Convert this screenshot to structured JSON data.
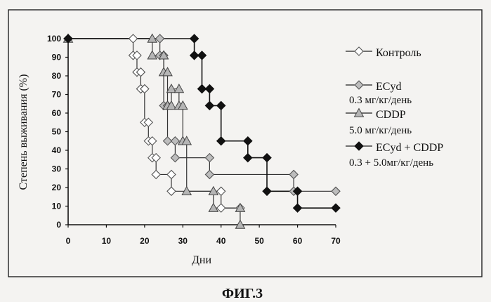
{
  "chart_data": {
    "type": "line",
    "step": true,
    "xlabel": "Дни",
    "ylabel": "Степень выживания (%)",
    "xlim": [
      0,
      70
    ],
    "ylim": [
      0,
      100
    ],
    "x_ticks": [
      0,
      10,
      20,
      30,
      40,
      50,
      60,
      70
    ],
    "y_ticks": [
      0,
      10,
      20,
      30,
      40,
      50,
      60,
      70,
      80,
      90,
      100
    ],
    "grid": false,
    "legend_position": "right",
    "caption": "ФИГ.3",
    "series": [
      {
        "name": "Контроль",
        "sublabel": "",
        "marker": "diamond-open",
        "color": "#ffffff",
        "points": [
          [
            0,
            100
          ],
          [
            17,
            100
          ],
          [
            17,
            91
          ],
          [
            18,
            91
          ],
          [
            18,
            82
          ],
          [
            19,
            82
          ],
          [
            19,
            73
          ],
          [
            20,
            73
          ],
          [
            20,
            55
          ],
          [
            21,
            55
          ],
          [
            21,
            45
          ],
          [
            22,
            45
          ],
          [
            22,
            36
          ],
          [
            23,
            36
          ],
          [
            23,
            27
          ],
          [
            27,
            27
          ],
          [
            27,
            18
          ],
          [
            40,
            18
          ],
          [
            40,
            9
          ],
          [
            45,
            9
          ]
        ]
      },
      {
        "name": "ECyd",
        "sublabel": "0.3 мг/кг/день",
        "marker": "diamond-gray",
        "color": "#bdbdbd",
        "points": [
          [
            0,
            100
          ],
          [
            24,
            100
          ],
          [
            24,
            91
          ],
          [
            25,
            91
          ],
          [
            25,
            64
          ],
          [
            26,
            64
          ],
          [
            26,
            45
          ],
          [
            28,
            45
          ],
          [
            28,
            36
          ],
          [
            37,
            36
          ],
          [
            37,
            27
          ],
          [
            59,
            27
          ],
          [
            59,
            18
          ],
          [
            70,
            18
          ]
        ]
      },
      {
        "name": "CDDP",
        "sublabel": "5.0 мг/кг/день",
        "marker": "triangle-gray",
        "color": "#b5b5b5",
        "points": [
          [
            0,
            100
          ],
          [
            22,
            100
          ],
          [
            22,
            91
          ],
          [
            25,
            91
          ],
          [
            25,
            82
          ],
          [
            26,
            82
          ],
          [
            26,
            64
          ],
          [
            27,
            64
          ],
          [
            27,
            73
          ],
          [
            29,
            73
          ],
          [
            29,
            64
          ],
          [
            30,
            64
          ],
          [
            30,
            45
          ],
          [
            31,
            45
          ],
          [
            31,
            18
          ],
          [
            38,
            18
          ],
          [
            38,
            9
          ],
          [
            45,
            9
          ],
          [
            45,
            0
          ]
        ]
      },
      {
        "name": "ECyd + CDDP",
        "sublabel": "0.3 + 5.0мг/кг/день",
        "marker": "diamond-filled",
        "color": "#111111",
        "points": [
          [
            0,
            100
          ],
          [
            33,
            100
          ],
          [
            33,
            91
          ],
          [
            35,
            91
          ],
          [
            35,
            73
          ],
          [
            37,
            73
          ],
          [
            37,
            64
          ],
          [
            40,
            64
          ],
          [
            40,
            45
          ],
          [
            47,
            45
          ],
          [
            47,
            36
          ],
          [
            52,
            36
          ],
          [
            52,
            18
          ],
          [
            60,
            18
          ],
          [
            60,
            9
          ],
          [
            70,
            9
          ]
        ]
      }
    ]
  }
}
